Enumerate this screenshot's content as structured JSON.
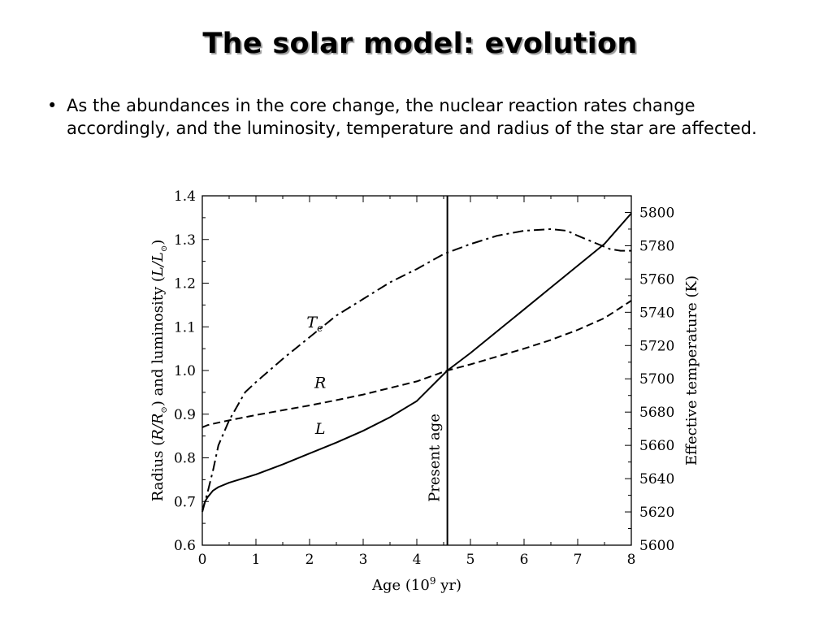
{
  "slide": {
    "title": "The solar model: evolution",
    "bullet_symbol": "•",
    "bullet_text": "As the abundances in the core change, the nuclear reaction rates change accordingly, and the luminosity, temperature and radius of the star are affected."
  },
  "chart_data": {
    "type": "line",
    "x_axis": {
      "label_prefix": "Age (10",
      "label_exponent": "9",
      "label_suffix": " yr)",
      "range": [
        0,
        8
      ],
      "ticks": [
        0,
        1,
        2,
        3,
        4,
        5,
        6,
        7,
        8
      ],
      "tick_labels": [
        "0",
        "1",
        "2",
        "3",
        "4",
        "5",
        "6",
        "7",
        "8"
      ]
    },
    "y_left": {
      "label_pre": "Radius (",
      "label_r": "R/R",
      "label_mid": ") and luminosity (",
      "label_l": "L/L",
      "label_post": ")",
      "range": [
        0.6,
        1.4
      ],
      "ticks": [
        0.6,
        0.7,
        0.8,
        0.9,
        1.0,
        1.1,
        1.2,
        1.3,
        1.4
      ],
      "tick_labels": [
        "0.6",
        "0.7",
        "0.8",
        "0.9",
        "1.0",
        "1.1",
        "1.2",
        "1.3",
        "1.4"
      ]
    },
    "y_right": {
      "label": "Effective temperature (K)",
      "range": [
        5600,
        5810
      ],
      "ticks": [
        5600,
        5620,
        5640,
        5660,
        5680,
        5700,
        5720,
        5740,
        5760,
        5780,
        5800
      ],
      "tick_labels": [
        "5600",
        "5620",
        "5640",
        "5660",
        "5680",
        "5700",
        "5720",
        "5740",
        "5760",
        "5780",
        "5800"
      ]
    },
    "vline": {
      "x": 4.57,
      "label": "Present age"
    },
    "series": [
      {
        "name": "L",
        "axis": "left",
        "style": "solid",
        "label_pos": [
          2.2,
          0.855
        ],
        "x": [
          0,
          0.05,
          0.1,
          0.2,
          0.3,
          0.5,
          1.0,
          1.5,
          2.0,
          2.5,
          3.0,
          3.5,
          4.0,
          4.57,
          5.0,
          5.5,
          6.0,
          6.5,
          7.0,
          7.5,
          8.0
        ],
        "y": [
          0.68,
          0.7,
          0.71,
          0.725,
          0.733,
          0.743,
          0.762,
          0.785,
          0.81,
          0.835,
          0.862,
          0.893,
          0.93,
          1.0,
          1.04,
          1.09,
          1.14,
          1.19,
          1.24,
          1.29,
          1.36
        ]
      },
      {
        "name": "R",
        "axis": "left",
        "style": "dashed",
        "label_pos": [
          2.2,
          0.96
        ],
        "x": [
          0,
          0.1,
          0.2,
          0.5,
          1.0,
          1.5,
          2.0,
          2.5,
          3.0,
          3.5,
          4.0,
          4.57,
          5.0,
          5.5,
          6.0,
          6.5,
          7.0,
          7.5,
          8.0
        ],
        "y": [
          0.87,
          0.875,
          0.878,
          0.886,
          0.898,
          0.909,
          0.92,
          0.932,
          0.945,
          0.96,
          0.975,
          1.0,
          1.014,
          1.032,
          1.05,
          1.07,
          1.093,
          1.12,
          1.16
        ]
      },
      {
        "name": "T",
        "name_subscript": "e",
        "axis": "right",
        "style": "dashdot",
        "label_pos": [
          2.1,
          5731
        ],
        "x": [
          0,
          0.1,
          0.2,
          0.3,
          0.5,
          0.8,
          1.0,
          1.5,
          2.0,
          2.5,
          3.0,
          3.5,
          4.0,
          4.5,
          5.0,
          5.5,
          6.0,
          6.5,
          6.8,
          7.0,
          7.3,
          7.6,
          7.8,
          8.0
        ],
        "y": [
          5620,
          5632,
          5645,
          5660,
          5675,
          5692,
          5698,
          5712,
          5725,
          5738,
          5748,
          5758,
          5766,
          5775,
          5781,
          5786,
          5789,
          5790,
          5789,
          5786,
          5782,
          5778,
          5777,
          5777
        ]
      }
    ]
  }
}
